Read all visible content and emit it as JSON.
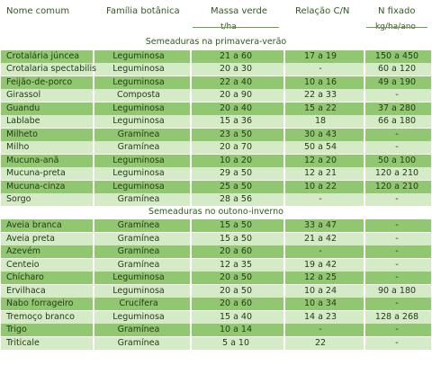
{
  "headers": {
    "name": "Nome comum",
    "family": "Família botânica",
    "mass": "Massa verde",
    "cn": "Relação C/N",
    "n": "N fixado"
  },
  "units": {
    "mass": "t/ha",
    "n": "kg/ha/ano"
  },
  "sections": [
    {
      "title": "Semeaduras na primavera-verão",
      "rows": [
        {
          "name": "Crotalária júncea",
          "family": "Leguminosa",
          "mass": "21 a 60",
          "cn": "17 a 19",
          "n": "150 a 450"
        },
        {
          "name": "Crotalaria spectabilis",
          "family": "Leguminosa",
          "mass": "20 a 30",
          "cn": "-",
          "n": "60 a 120"
        },
        {
          "name": "Feijão-de-porco",
          "family": "Leguminosa",
          "mass": "22 a 40",
          "cn": "10 a 16",
          "n": "49 a 190"
        },
        {
          "name": "Girassol",
          "family": "Composta",
          "mass": "20 a 90",
          "cn": "22 a 33",
          "n": "-"
        },
        {
          "name": "Guandu",
          "family": "Leguminosa",
          "mass": "20 a 40",
          "cn": "15 a 22",
          "n": "37 a 280"
        },
        {
          "name": "Lablabe",
          "family": "Leguminosa",
          "mass": "15 a 36",
          "cn": "18",
          "n": "66 a 180"
        },
        {
          "name": "Milheto",
          "family": "Gramínea",
          "mass": "23 a 50",
          "cn": "30 a 43",
          "n": "-"
        },
        {
          "name": "Milho",
          "family": "Gramínea",
          "mass": "20 a 70",
          "cn": "50 a 54",
          "n": "-"
        },
        {
          "name": "Mucuna-anã",
          "family": "Leguminosa",
          "mass": "10 a 20",
          "cn": "12 a 20",
          "n": "50 a 100"
        },
        {
          "name": "Mucuna-preta",
          "family": "Leguminosa",
          "mass": "29 a 50",
          "cn": "12 a 21",
          "n": "120 a 210"
        },
        {
          "name": "Mucuna-cinza",
          "family": "Leguminosa",
          "mass": "25 a 50",
          "cn": "10 a 22",
          "n": "120 a 210"
        },
        {
          "name": "Sorgo",
          "family": "Gramínea",
          "mass": "28 a 56",
          "cn": "-",
          "n": "-"
        }
      ]
    },
    {
      "title": "Semeaduras no outono-inverno",
      "rows": [
        {
          "name": "Aveia branca",
          "family": "Gramínea",
          "mass": "15 a 50",
          "cn": "33 a 47",
          "n": "-"
        },
        {
          "name": "Aveia preta",
          "family": "Gramínea",
          "mass": "15 a 50",
          "cn": "21 a 42",
          "n": "-"
        },
        {
          "name": "Azevém",
          "family": "Gramínea",
          "mass": "20 a 60",
          "cn": "-",
          "n": "-"
        },
        {
          "name": "Centeio",
          "family": "Gramínea",
          "mass": "12 a 35",
          "cn": "19 a 42",
          "n": "-"
        },
        {
          "name": "Chícharo",
          "family": "Leguminosa",
          "mass": "20 a 50",
          "cn": "12 a 25",
          "n": "-"
        },
        {
          "name": "Ervilhaca",
          "family": "Leguminosa",
          "mass": "20 a 50",
          "cn": "10 a 24",
          "n": "90 a 180"
        },
        {
          "name": "Nabo forrageiro",
          "family": "Crucífera",
          "mass": "20 a 60",
          "cn": "10 a 34",
          "n": "-"
        },
        {
          "name": "Tremoço branco",
          "family": "Leguminosa",
          "mass": "15 a 40",
          "cn": "14 a 23",
          "n": "128 a 268"
        },
        {
          "name": "Trigo",
          "family": "Gramínea",
          "mass": "10 a 14",
          "cn": "-",
          "n": "-"
        },
        {
          "name": "Triticale",
          "family": "Gramínea",
          "mass": "5 a 10",
          "cn": "22",
          "n": "-"
        }
      ]
    }
  ],
  "colors": {
    "dark_band": "#92c771",
    "light_band": "#d5eac7",
    "text": "#253b19",
    "header_text": "#2f5a1d"
  }
}
